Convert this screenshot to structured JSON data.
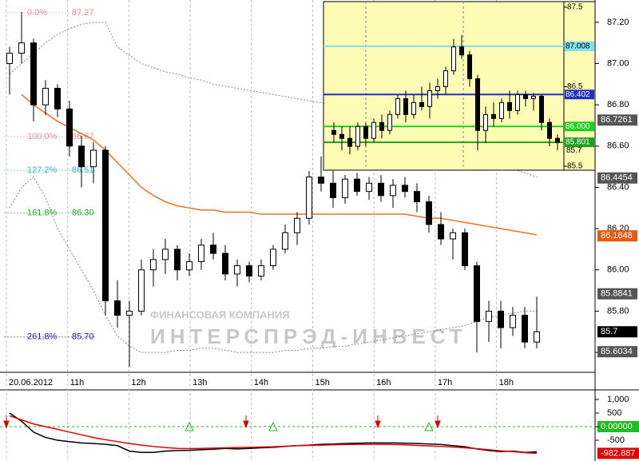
{
  "chart_data": [
    {
      "type": "candlestick",
      "ylim": [
        85.519,
        87.308
      ],
      "yticks": [
        {
          "value": 87.2,
          "label": "87.20"
        },
        {
          "value": 87,
          "label": "87.00"
        },
        {
          "value": 86.8,
          "label": "86.80"
        },
        {
          "value": 86.6,
          "label": "86.60"
        },
        {
          "value": 86.4,
          "label": "86.40"
        },
        {
          "value": 86.2,
          "label": "86.20"
        },
        {
          "value": 86,
          "label": "86.00"
        },
        {
          "value": 85.8,
          "label": "85.80"
        },
        {
          "value": 85.6,
          "label": "85.60"
        }
      ],
      "time_labels": [
        "20.06.2012",
        "11h",
        "12h",
        "13h",
        "14h",
        "15h",
        "16h",
        "17h",
        "18h"
      ],
      "candles": [
        [
          87.0,
          87.08,
          86.85,
          87.05
        ],
        [
          87.05,
          87.25,
          87.0,
          87.1
        ],
        [
          87.1,
          87.12,
          86.72,
          86.8
        ],
        [
          86.8,
          86.92,
          86.75,
          86.88
        ],
        [
          86.88,
          86.9,
          86.74,
          86.78
        ],
        [
          86.78,
          86.82,
          86.55,
          86.6
        ],
        [
          86.6,
          86.65,
          86.4,
          86.5
        ],
        [
          86.5,
          86.62,
          86.42,
          86.58
        ],
        [
          86.58,
          86.6,
          85.78,
          85.85
        ],
        [
          85.85,
          85.95,
          85.72,
          85.78
        ],
        [
          85.78,
          85.85,
          85.53,
          85.8
        ],
        [
          85.8,
          86.05,
          85.78,
          86.0
        ],
        [
          86.0,
          86.1,
          85.92,
          86.05
        ],
        [
          86.05,
          86.15,
          85.98,
          86.1
        ],
        [
          86.1,
          86.12,
          85.95,
          86.0
        ],
        [
          86.0,
          86.08,
          85.97,
          86.04
        ],
        [
          86.04,
          86.15,
          86.0,
          86.12
        ],
        [
          86.12,
          86.18,
          86.05,
          86.08
        ],
        [
          86.08,
          86.12,
          85.95,
          85.98
        ],
        [
          85.98,
          86.05,
          85.92,
          86.02
        ],
        [
          86.02,
          86.04,
          85.94,
          85.97
        ],
        [
          85.97,
          86.05,
          85.95,
          86.02
        ],
        [
          86.02,
          86.12,
          86.0,
          86.1
        ],
        [
          86.1,
          86.22,
          86.08,
          86.18
        ],
        [
          86.18,
          86.28,
          86.12,
          86.25
        ],
        [
          86.25,
          86.48,
          86.22,
          86.45
        ],
        [
          86.45,
          86.55,
          86.38,
          86.42
        ],
        [
          86.42,
          86.48,
          86.3,
          86.35
        ],
        [
          86.35,
          86.46,
          86.32,
          86.44
        ],
        [
          86.44,
          86.47,
          86.36,
          86.38
        ],
        [
          86.38,
          86.45,
          86.34,
          86.42
        ],
        [
          86.42,
          86.46,
          86.33,
          86.36
        ],
        [
          86.36,
          86.44,
          86.3,
          86.41
        ],
        [
          86.41,
          86.45,
          86.35,
          86.38
        ],
        [
          86.38,
          86.42,
          86.28,
          86.33
        ],
        [
          86.33,
          86.36,
          86.18,
          86.22
        ],
        [
          86.22,
          86.28,
          86.12,
          86.15
        ],
        [
          86.15,
          86.2,
          86.05,
          86.18
        ],
        [
          86.18,
          86.2,
          86.0,
          86.02
        ],
        [
          86.02,
          86.04,
          85.6,
          85.75
        ],
        [
          85.75,
          85.85,
          85.65,
          85.8
        ],
        [
          85.8,
          85.85,
          85.62,
          85.72
        ],
        [
          85.72,
          85.82,
          85.68,
          85.78
        ],
        [
          85.78,
          85.82,
          85.62,
          85.65
        ],
        [
          85.65,
          85.87,
          85.62,
          85.7
        ]
      ],
      "lines": [
        {
          "color": "#f07020",
          "style": "solid",
          "values": [
            null,
            86.85,
            86.8,
            86.76,
            86.72,
            86.69,
            86.66,
            86.63,
            86.58,
            86.52,
            86.46,
            86.4,
            86.36,
            86.33,
            86.31,
            86.3,
            86.29,
            86.29,
            86.28,
            86.28,
            86.28,
            86.27,
            86.27,
            86.27,
            86.27,
            86.27,
            86.27,
            86.27,
            86.27,
            86.27,
            86.27,
            86.27,
            86.27,
            86.27,
            86.26,
            86.25,
            86.25,
            86.24,
            86.23,
            86.22,
            86.21,
            86.2,
            86.19,
            86.18,
            86.17
          ]
        },
        {
          "color": "#888888",
          "style": "dotted",
          "values": [
            86.95,
            87.0,
            87.05,
            87.1,
            87.14,
            87.17,
            87.19,
            87.2,
            87.2,
            87.08,
            87.04,
            87.0,
            86.98,
            86.96,
            86.95,
            86.93,
            86.92,
            86.9,
            86.89,
            86.88,
            86.87,
            86.86,
            86.85,
            86.84,
            86.83,
            86.82,
            86.81,
            86.8,
            86.8,
            86.79,
            86.78,
            86.77,
            86.76,
            86.75,
            86.74,
            86.72,
            86.7,
            86.67,
            86.63,
            86.58,
            86.54,
            86.51,
            86.49,
            86.47,
            86.45
          ]
        },
        {
          "color": "#888888",
          "style": "dotted",
          "values": [
            86.3,
            86.4,
            86.45,
            86.35,
            86.2,
            86.1,
            86.0,
            85.9,
            85.78,
            85.68,
            85.63,
            85.6,
            85.6,
            85.6,
            85.61,
            85.61,
            85.62,
            85.62,
            85.61,
            85.6,
            85.6,
            85.6,
            85.6,
            85.61,
            85.61,
            85.62,
            85.62,
            85.63,
            85.63,
            85.64,
            85.65,
            85.66,
            85.67,
            85.68,
            85.69,
            85.7,
            85.71,
            85.72,
            85.73,
            85.75,
            85.77,
            85.78,
            85.79,
            85.8,
            85.8
          ]
        }
      ],
      "price_labels": [
        {
          "value": 86.7261,
          "color": "#555555"
        },
        {
          "value": 86.4454,
          "color": "#555555"
        },
        {
          "value": 86.1648,
          "color": "#e85a10"
        },
        {
          "value": 85.8841,
          "color": "#555555"
        },
        {
          "value": 85.7,
          "color": "#000000"
        },
        {
          "value": 85.6034,
          "color": "#555555"
        }
      ],
      "fib_levels": [
        {
          "level": 0,
          "label": "0.0%",
          "price": "87.27",
          "color": "#e89098"
        },
        {
          "level": 100,
          "label": "100.0%",
          "price": "86.67",
          "color": "#e89098"
        },
        {
          "level": 127.2,
          "label": "127.2%",
          "price": "86.51",
          "color": "#30b8c8"
        },
        {
          "level": 161.8,
          "label": "161.8%",
          "price": "86.30",
          "color": "#20b020"
        },
        {
          "level": 261.8,
          "label": "261.8%",
          "price": "85.70",
          "color": "#2020c0"
        }
      ],
      "watermark": [
        "ФИНАНСОВАЯ КОМПАНИЯ",
        "ИНТЕРСПРЭД-ИНВЕСТ"
      ]
    },
    {
      "type": "candlestick",
      "ylim": [
        85.45,
        87.57
      ],
      "yticks": [
        87.5,
        86.5,
        85.5
      ],
      "candles": [
        [
          85.95,
          86.05,
          85.8,
          85.9
        ],
        [
          85.9,
          86.0,
          85.7,
          85.85
        ],
        [
          85.85,
          86.0,
          85.65,
          85.75
        ],
        [
          85.75,
          86.05,
          85.7,
          86.0
        ],
        [
          86.0,
          86.05,
          85.75,
          85.85
        ],
        [
          85.85,
          86.1,
          85.8,
          86.05
        ],
        [
          86.05,
          86.15,
          85.85,
          85.95
        ],
        [
          85.95,
          86.2,
          85.9,
          86.15
        ],
        [
          86.15,
          86.4,
          86.1,
          86.35
        ],
        [
          86.35,
          86.45,
          86.05,
          86.15
        ],
        [
          86.15,
          86.4,
          86.1,
          86.3
        ],
        [
          86.3,
          86.5,
          86.2,
          86.25
        ],
        [
          86.25,
          86.55,
          86.1,
          86.45
        ],
        [
          86.45,
          86.6,
          86.35,
          86.5
        ],
        [
          86.5,
          86.75,
          86.4,
          86.7
        ],
        [
          86.7,
          87.1,
          86.65,
          87.0
        ],
        [
          87.0,
          87.15,
          86.85,
          86.9
        ],
        [
          86.9,
          86.95,
          86.5,
          86.6
        ],
        [
          86.6,
          86.65,
          85.7,
          85.95
        ],
        [
          85.95,
          86.25,
          85.8,
          86.15
        ],
        [
          86.15,
          86.3,
          86.0,
          86.1
        ],
        [
          86.1,
          86.35,
          86.05,
          86.3
        ],
        [
          86.3,
          86.45,
          86.1,
          86.2
        ],
        [
          86.2,
          86.45,
          86.15,
          86.4
        ],
        [
          86.4,
          86.45,
          86.25,
          86.35
        ],
        [
          86.35,
          86.42,
          86.2,
          86.38
        ],
        [
          86.38,
          86.4,
          85.95,
          86.05
        ],
        [
          86.05,
          86.1,
          85.75,
          85.85
        ],
        [
          85.85,
          85.9,
          85.7,
          85.8
        ]
      ],
      "price_lines": [
        {
          "value": 87.008,
          "color": "#7fe0f0"
        },
        {
          "value": 86.402,
          "color": "#2030c0"
        },
        {
          "value": 86,
          "label": "86.000",
          "color": "#20d020"
        },
        {
          "value": 85.801,
          "color": "#20a020"
        }
      ],
      "price_labels": [
        85.7
      ]
    },
    {
      "type": "line",
      "ylim": [
        -1265,
        1353
      ],
      "yticks": [
        {
          "value": 1000,
          "label": "1,000"
        },
        500,
        {
          "value": 0,
          "label": "0.00000"
        },
        -500
      ],
      "zero_color": "#22bb22",
      "series": [
        {
          "color": "#000000",
          "values": [
            500,
            200,
            -200,
            -400,
            -500,
            -550,
            -600,
            -620,
            -650,
            -700,
            -900,
            -950,
            -950,
            -900,
            -880,
            -870,
            -850,
            -830,
            -800,
            -820,
            -800,
            -780,
            -760,
            -730,
            -700,
            -680,
            -650,
            -640,
            -620,
            -610,
            -600,
            -600,
            -600,
            -610,
            -620,
            -640,
            -660,
            -700,
            -740,
            -820,
            -880,
            -920,
            -900,
            -950,
            -930
          ]
        },
        {
          "color": "#e00000",
          "values": [
            400,
            250,
            100,
            0,
            -100,
            -200,
            -300,
            -400,
            -480,
            -550,
            -620,
            -680,
            -730,
            -770,
            -800,
            -810,
            -800,
            -790,
            -780,
            -770,
            -760,
            -750,
            -740,
            -720,
            -700,
            -690,
            -680,
            -670,
            -660,
            -650,
            -650,
            -650,
            -660,
            -670,
            -690,
            -710,
            -730,
            -750,
            -780,
            -810,
            -850,
            -890,
            -920,
            -960,
            -982.887
          ]
        }
      ],
      "current_value": -982.887,
      "sell_signals": [
        0,
        20,
        31,
        36
      ],
      "buy_signals": [
        15,
        22,
        35
      ]
    }
  ]
}
